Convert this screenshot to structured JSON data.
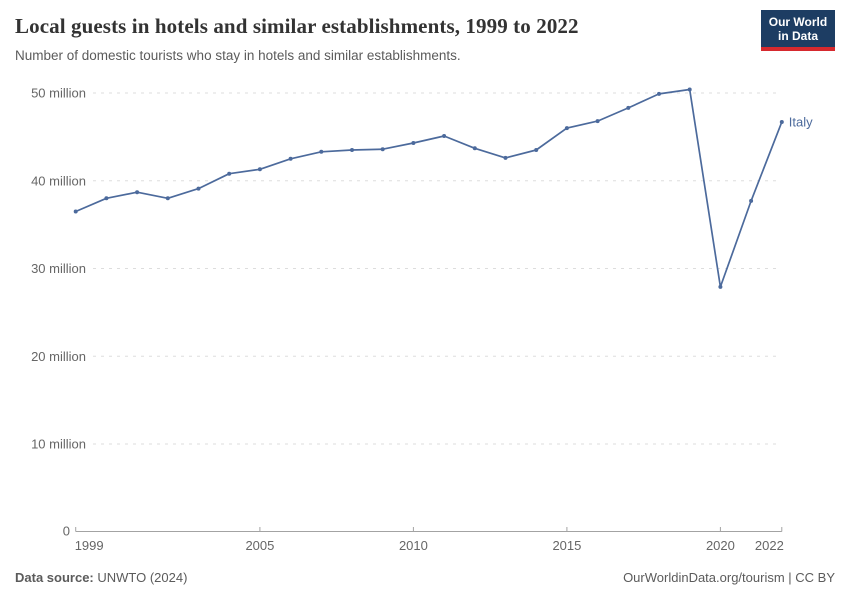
{
  "header": {
    "title": "Local guests in hotels and similar establishments, 1999 to 2022",
    "subtitle": "Number of domestic tourists who stay in hotels and similar establishments."
  },
  "logo": {
    "line1": "Our World",
    "line2": "in Data"
  },
  "chart_data": {
    "type": "line",
    "title": "Local guests in hotels and similar establishments, 1999 to 2022",
    "xlabel": "",
    "ylabel": "",
    "unit": "million",
    "x": [
      1999,
      2000,
      2001,
      2002,
      2003,
      2004,
      2005,
      2006,
      2007,
      2008,
      2009,
      2010,
      2011,
      2012,
      2013,
      2014,
      2015,
      2016,
      2017,
      2018,
      2019,
      2020,
      2021,
      2022
    ],
    "series": [
      {
        "name": "Italy",
        "color": "#4C6A9C",
        "values": [
          36.5,
          38.0,
          38.7,
          38.0,
          39.1,
          40.8,
          41.3,
          42.5,
          43.3,
          43.5,
          43.6,
          44.3,
          45.1,
          43.7,
          42.6,
          43.5,
          46.0,
          46.8,
          48.3,
          49.9,
          50.4,
          27.9,
          37.7,
          46.7
        ]
      }
    ],
    "end_label": "Italy",
    "xlim": [
      1999,
      2022
    ],
    "ylim": [
      0,
      50
    ],
    "x_ticks": [
      1999,
      2005,
      2010,
      2015,
      2020,
      2022
    ],
    "y_ticks": [
      {
        "value": 0,
        "label": "0"
      },
      {
        "value": 10,
        "label": "10 million"
      },
      {
        "value": 20,
        "label": "20 million"
      },
      {
        "value": 30,
        "label": "30 million"
      },
      {
        "value": 40,
        "label": "40 million"
      },
      {
        "value": 50,
        "label": "50 million"
      }
    ],
    "grid": true,
    "legend_position": "end-of-line"
  },
  "footer": {
    "datasource_label": "Data source:",
    "datasource_value": "UNWTO (2024)",
    "link": "OurWorldinData.org/tourism | CC BY"
  },
  "colors": {
    "line": "#4C6A9C",
    "grid": "#dddddd",
    "axis": "#a3a3a3",
    "tick_text": "#666666",
    "logo_bg": "#1d3d63",
    "logo_red": "#d6292e"
  }
}
